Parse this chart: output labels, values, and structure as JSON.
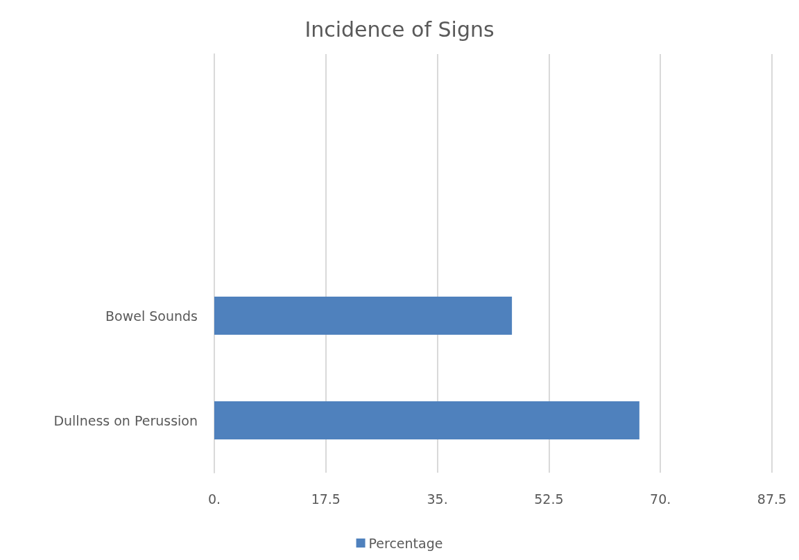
{
  "chart_data": {
    "type": "bar",
    "orientation": "horizontal",
    "title": "Incidence of Signs",
    "categories": [
      null,
      null,
      "Bowel Sounds",
      "Dullness on Perussion"
    ],
    "series": [
      {
        "name": "Percentage",
        "color": "#4f81bd",
        "values": [
          null,
          null,
          46.7,
          66.7
        ]
      }
    ],
    "xlim": [
      0,
      87.5
    ],
    "xticks": [
      {
        "value": 0,
        "label": "0."
      },
      17.5,
      {
        "value": 35,
        "label": "35."
      },
      52.5,
      {
        "value": 70,
        "label": "70."
      },
      87.5
    ],
    "grid": "x",
    "legend": "bottom"
  }
}
